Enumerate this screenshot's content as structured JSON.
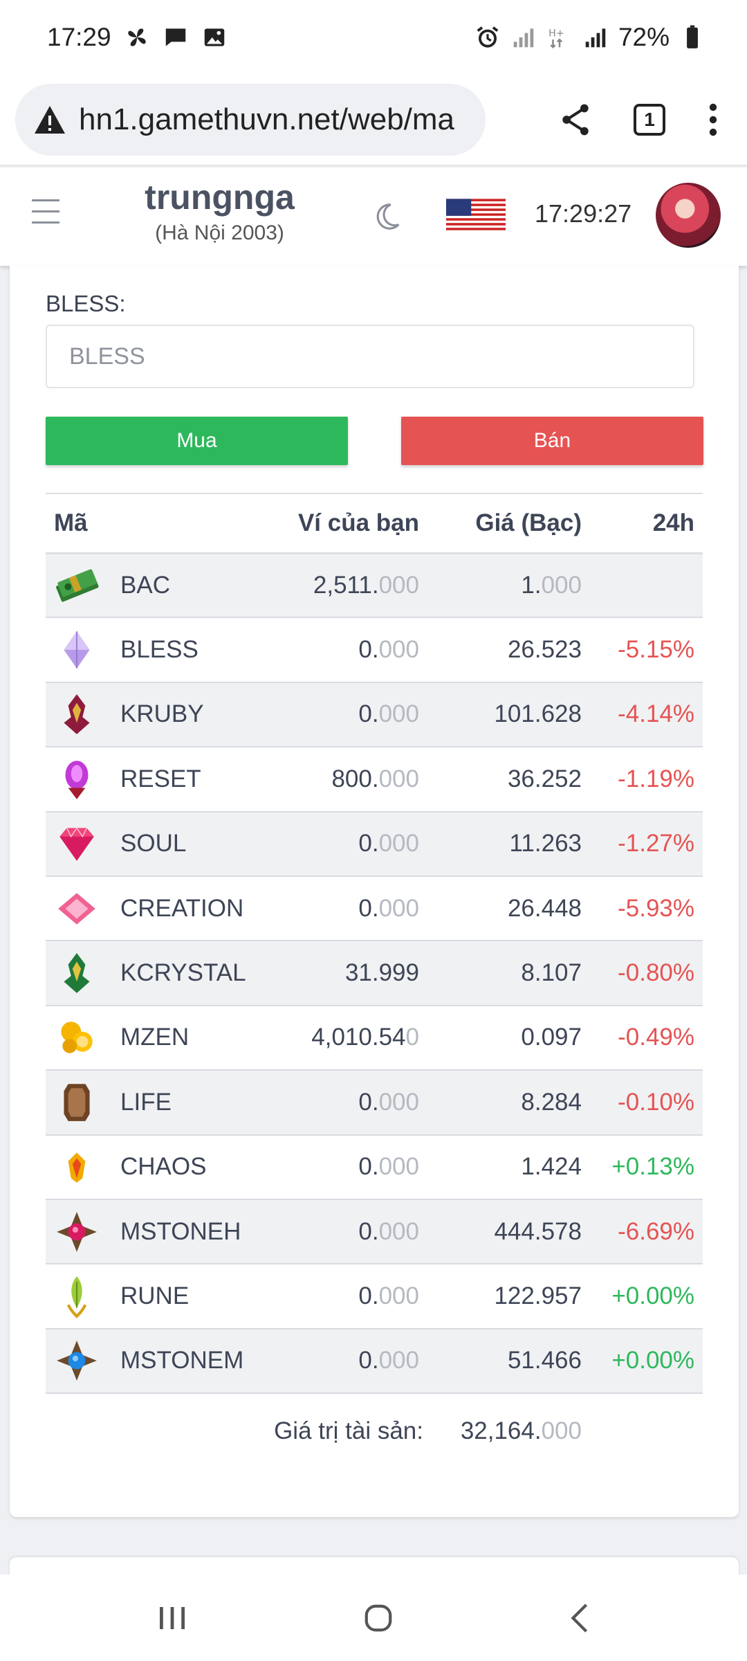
{
  "status_bar": {
    "time": "17:29",
    "battery": "72%"
  },
  "browser": {
    "url": "hn1.gamethuvn.net/web/ma",
    "tab_count": "1"
  },
  "header": {
    "username": "trungnga",
    "server": "(Hà Nội 2003)",
    "clock": "17:29:27"
  },
  "form": {
    "label": "BLESS:",
    "placeholder": "BLESS",
    "buy_label": "Mua",
    "sell_label": "Bán"
  },
  "table": {
    "columns": {
      "code": "Mã",
      "wallet": "Ví của bạn",
      "price": "Giá (Bạc)",
      "change": "24h"
    },
    "rows": [
      {
        "code": "BAC",
        "icon": "money-icon",
        "wallet_main": "2,511.",
        "wallet_dim": "000",
        "price_main": "1.",
        "price_dim": "000",
        "change": ""
      },
      {
        "code": "BLESS",
        "icon": "purple-gem-icon",
        "wallet_main": "0.",
        "wallet_dim": "000",
        "price_main": "26.523",
        "price_dim": "",
        "change": "-5.15%"
      },
      {
        "code": "KRUBY",
        "icon": "red-rune-icon",
        "wallet_main": "0.",
        "wallet_dim": "000",
        "price_main": "101.628",
        "price_dim": "",
        "change": "-4.14%"
      },
      {
        "code": "RESET",
        "icon": "reset-jewel-icon",
        "wallet_main": "800.",
        "wallet_dim": "000",
        "price_main": "36.252",
        "price_dim": "",
        "change": "-1.19%"
      },
      {
        "code": "SOUL",
        "icon": "pink-diamond-icon",
        "wallet_main": "0.",
        "wallet_dim": "000",
        "price_main": "11.263",
        "price_dim": "",
        "change": "-1.27%"
      },
      {
        "code": "CREATION",
        "icon": "creation-gem-icon",
        "wallet_main": "0.",
        "wallet_dim": "000",
        "price_main": "26.448",
        "price_dim": "",
        "change": "-5.93%"
      },
      {
        "code": "KCRYSTAL",
        "icon": "green-rune-icon",
        "wallet_main": "31.999",
        "wallet_dim": "",
        "price_main": "8.107",
        "price_dim": "",
        "change": "-0.80%"
      },
      {
        "code": "MZEN",
        "icon": "gold-coins-icon",
        "wallet_main": "4,010.54",
        "wallet_dim": "0",
        "price_main": "0.097",
        "price_dim": "",
        "change": "-0.49%"
      },
      {
        "code": "LIFE",
        "icon": "life-crystal-icon",
        "wallet_main": "0.",
        "wallet_dim": "000",
        "price_main": "8.284",
        "price_dim": "",
        "change": "-0.10%"
      },
      {
        "code": "CHAOS",
        "icon": "chaos-jewel-icon",
        "wallet_main": "0.",
        "wallet_dim": "000",
        "price_main": "1.424",
        "price_dim": "",
        "change": "+0.13%"
      },
      {
        "code": "MSTONEH",
        "icon": "red-star-stone-icon",
        "wallet_main": "0.",
        "wallet_dim": "000",
        "price_main": "444.578",
        "price_dim": "",
        "change": "-6.69%"
      },
      {
        "code": "RUNE",
        "icon": "rune-leaf-icon",
        "wallet_main": "0.",
        "wallet_dim": "000",
        "price_main": "122.957",
        "price_dim": "",
        "change": "+0.00%"
      },
      {
        "code": "MSTONEM",
        "icon": "blue-star-stone-icon",
        "wallet_main": "0.",
        "wallet_dim": "000",
        "price_main": "51.466",
        "price_dim": "",
        "change": "+0.00%"
      }
    ]
  },
  "total": {
    "label": "Giá trị tài sản:",
    "value_main": "32,164.",
    "value_dim": "000"
  },
  "colors": {
    "buy": "#2eb85c",
    "sell": "#e55353",
    "positive": "#2eb85c",
    "negative": "#e55353"
  }
}
